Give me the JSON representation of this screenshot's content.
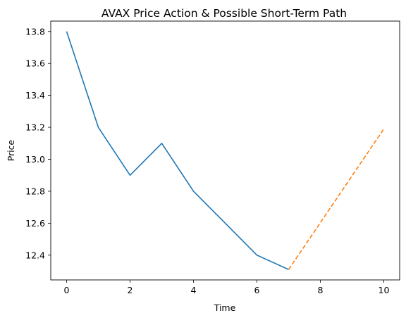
{
  "chart_data": {
    "type": "line",
    "title": "AVAX Price Action & Possible Short-Term Path",
    "xlabel": "Time",
    "ylabel": "Price",
    "xlim": [
      -0.5,
      10.5
    ],
    "ylim": [
      12.245,
      13.865
    ],
    "x_ticks": [
      0,
      2,
      4,
      6,
      8,
      10
    ],
    "y_ticks": [
      12.4,
      12.6,
      12.8,
      13.0,
      13.2,
      13.4,
      13.6,
      13.8
    ],
    "grid": false,
    "series": [
      {
        "style": "solid",
        "color": "#1f77b4",
        "x": [
          0,
          1,
          2,
          3,
          4,
          5,
          6,
          7
        ],
        "y": [
          13.8,
          13.2,
          12.9,
          13.1,
          12.8,
          12.6,
          12.4,
          12.31
        ]
      },
      {
        "style": "dashed",
        "color": "#ff7f0e",
        "x": [
          7,
          10
        ],
        "y": [
          12.31,
          13.19
        ]
      }
    ]
  }
}
